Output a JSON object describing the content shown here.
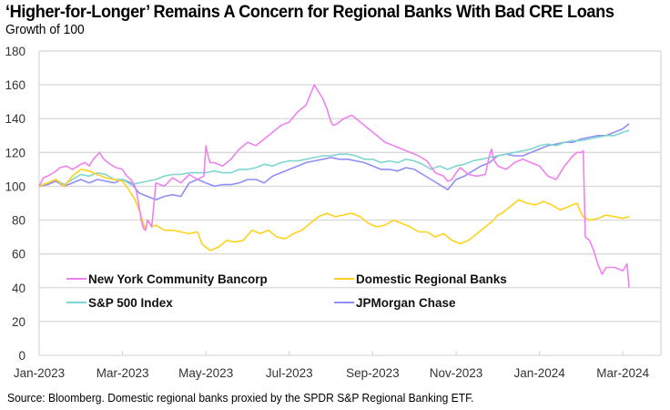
{
  "chart_data": {
    "type": "line",
    "title": "‘Higher-for-Longer’ Remains A Concern for Regional Banks With Bad CRE Loans",
    "subtitle": "Growth of 100",
    "xlabel": "",
    "ylabel": "",
    "source": "Source: Bloomberg. Domestic regional banks proxied by the SPDR S&P Regional Banking ETF.",
    "ylim": [
      0,
      180
    ],
    "yticks": [
      0,
      20,
      40,
      60,
      80,
      100,
      120,
      140,
      160,
      180
    ],
    "xlim_months": [
      0,
      14.9
    ],
    "xticks": [
      {
        "m": 0,
        "label": "Jan-2023"
      },
      {
        "m": 2,
        "label": "Mar-2023"
      },
      {
        "m": 4,
        "label": "May-2023"
      },
      {
        "m": 6,
        "label": "Jul-2023"
      },
      {
        "m": 8,
        "label": "Sep-2023"
      },
      {
        "m": 10,
        "label": "Nov-2023"
      },
      {
        "m": 12,
        "label": "Jan-2024"
      },
      {
        "m": 14,
        "label": "Mar-2024"
      }
    ],
    "x_unit": "months since Jan-2023",
    "grid": "horizontal",
    "legend_position": "lower-left, inside plot",
    "series": [
      {
        "name": "New York Community Bancorp",
        "color": "#ee82ee",
        "x": [
          0,
          0.1,
          0.2,
          0.35,
          0.5,
          0.65,
          0.8,
          1.0,
          1.1,
          1.2,
          1.3,
          1.45,
          1.55,
          1.7,
          1.85,
          2.0,
          2.1,
          2.2,
          2.25,
          2.3,
          2.35,
          2.45,
          2.5,
          2.55,
          2.6,
          2.7,
          2.8,
          3.0,
          3.2,
          3.4,
          3.6,
          3.8,
          3.95,
          4.0,
          4.05,
          4.1,
          4.2,
          4.4,
          4.6,
          4.8,
          5.0,
          5.2,
          5.4,
          5.6,
          5.8,
          6.0,
          6.2,
          6.4,
          6.6,
          6.8,
          6.9,
          7.0,
          7.05,
          7.15,
          7.3,
          7.5,
          7.7,
          7.9,
          8.1,
          8.3,
          8.5,
          8.7,
          8.9,
          9.1,
          9.3,
          9.5,
          9.7,
          9.8,
          9.9,
          10.0,
          10.1,
          10.3,
          10.5,
          10.7,
          10.8,
          10.85,
          10.9,
          11.0,
          11.2,
          11.4,
          11.6,
          11.8,
          12.0,
          12.2,
          12.4,
          12.6,
          12.8,
          12.9,
          13.0,
          13.05,
          13.1,
          13.2,
          13.3,
          13.4,
          13.5,
          13.6,
          13.8,
          14.0,
          14.1,
          14.15
        ],
        "values": [
          100,
          105,
          106,
          108,
          111,
          112,
          110,
          113,
          114,
          112,
          116,
          120,
          116,
          113,
          111,
          110,
          106,
          104,
          102,
          100,
          95,
          80,
          75,
          74,
          80,
          76,
          102,
          100,
          105,
          102,
          107,
          104,
          106,
          124,
          118,
          114,
          114,
          112,
          116,
          122,
          126,
          124,
          128,
          132,
          136,
          138,
          144,
          148,
          160,
          152,
          146,
          138,
          136,
          137,
          140,
          142,
          138,
          134,
          130,
          126,
          124,
          122,
          120,
          118,
          115,
          108,
          106,
          103,
          104,
          108,
          111,
          107,
          106,
          107,
          118,
          122,
          116,
          112,
          110,
          114,
          116,
          114,
          112,
          106,
          104,
          112,
          118,
          120,
          120,
          121,
          70,
          68,
          62,
          54,
          48,
          52,
          52,
          50,
          54,
          40
        ],
        "smooth": false
      },
      {
        "name": "Domestic Regional Banks",
        "color": "#ffd21f",
        "x": [
          0,
          0.2,
          0.4,
          0.6,
          0.8,
          1.0,
          1.2,
          1.4,
          1.6,
          1.8,
          2.0,
          2.15,
          2.3,
          2.4,
          2.5,
          2.55,
          2.6,
          2.7,
          2.8,
          3.0,
          3.2,
          3.4,
          3.6,
          3.8,
          3.9,
          4.0,
          4.1,
          4.3,
          4.5,
          4.7,
          4.9,
          5.1,
          5.3,
          5.5,
          5.7,
          5.9,
          6.1,
          6.3,
          6.5,
          6.7,
          6.9,
          7.1,
          7.3,
          7.5,
          7.7,
          7.9,
          8.1,
          8.3,
          8.5,
          8.7,
          8.9,
          9.1,
          9.3,
          9.5,
          9.7,
          9.9,
          10.1,
          10.3,
          10.5,
          10.7,
          10.9,
          11.0,
          11.1,
          11.3,
          11.5,
          11.7,
          11.9,
          12.1,
          12.3,
          12.5,
          12.7,
          12.9,
          13.0,
          13.05,
          13.2,
          13.4,
          13.6,
          13.8,
          14.0,
          14.15
        ],
        "values": [
          100,
          102,
          104,
          100,
          106,
          110,
          109,
          107,
          105,
          104,
          103,
          98,
          92,
          86,
          78,
          74,
          80,
          76,
          77,
          74,
          74,
          73,
          72,
          73,
          66,
          64,
          62,
          64,
          68,
          67,
          68,
          74,
          72,
          74,
          70,
          69,
          72,
          74,
          78,
          82,
          84,
          82,
          83,
          84,
          82,
          78,
          76,
          77,
          80,
          78,
          76,
          73,
          73,
          70,
          72,
          68,
          66,
          68,
          72,
          76,
          80,
          83,
          84,
          88,
          92,
          90,
          89,
          91,
          89,
          86,
          88,
          90,
          84,
          82,
          80,
          81,
          83,
          82,
          81,
          82
        ],
        "smooth": false
      },
      {
        "name": "S&P 500 Index",
        "color": "#7fd6cf",
        "x": [
          0,
          0.2,
          0.4,
          0.6,
          0.8,
          1.0,
          1.2,
          1.4,
          1.6,
          1.8,
          2.0,
          2.2,
          2.4,
          2.6,
          2.8,
          3.0,
          3.2,
          3.4,
          3.6,
          3.8,
          4.0,
          4.2,
          4.4,
          4.6,
          4.8,
          5.0,
          5.2,
          5.4,
          5.6,
          5.8,
          6.0,
          6.2,
          6.4,
          6.6,
          6.8,
          7.0,
          7.2,
          7.4,
          7.6,
          7.8,
          8.0,
          8.2,
          8.4,
          8.6,
          8.8,
          9.0,
          9.2,
          9.4,
          9.6,
          9.8,
          10.0,
          10.2,
          10.4,
          10.6,
          10.8,
          11.0,
          11.2,
          11.4,
          11.6,
          11.8,
          12.0,
          12.2,
          12.4,
          12.6,
          12.8,
          13.0,
          13.2,
          13.4,
          13.6,
          13.8,
          14.0,
          14.15
        ],
        "values": [
          100,
          102,
          104,
          101,
          104,
          107,
          106,
          108,
          107,
          104,
          104,
          101,
          102,
          103,
          104,
          106,
          107,
          107,
          108,
          108,
          108,
          109,
          108,
          108,
          110,
          110,
          111,
          113,
          112,
          114,
          115,
          115,
          116,
          117,
          118,
          118,
          119,
          119,
          118,
          116,
          116,
          114,
          115,
          114,
          116,
          115,
          113,
          110,
          112,
          110,
          112,
          113,
          115,
          116,
          117,
          118,
          119,
          120,
          121,
          122,
          124,
          125,
          124,
          126,
          127,
          127,
          128,
          129,
          130,
          130,
          132,
          133
        ],
        "smooth": false
      },
      {
        "name": "JPMorgan Chase",
        "color": "#8f8ff5",
        "x": [
          0,
          0.2,
          0.4,
          0.6,
          0.8,
          1.0,
          1.2,
          1.4,
          1.6,
          1.8,
          2.0,
          2.2,
          2.4,
          2.6,
          2.8,
          3.0,
          3.2,
          3.4,
          3.6,
          3.8,
          4.0,
          4.2,
          4.4,
          4.6,
          4.8,
          5.0,
          5.2,
          5.4,
          5.6,
          5.8,
          6.0,
          6.2,
          6.4,
          6.6,
          6.8,
          7.0,
          7.2,
          7.4,
          7.6,
          7.8,
          8.0,
          8.2,
          8.4,
          8.6,
          8.8,
          9.0,
          9.2,
          9.4,
          9.6,
          9.8,
          10.0,
          10.2,
          10.4,
          10.6,
          10.8,
          11.0,
          11.2,
          11.4,
          11.6,
          11.8,
          12.0,
          12.2,
          12.4,
          12.6,
          12.8,
          13.0,
          13.2,
          13.4,
          13.6,
          13.8,
          14.0,
          14.15
        ],
        "values": [
          100,
          101,
          103,
          100,
          102,
          104,
          102,
          104,
          103,
          102,
          104,
          102,
          96,
          94,
          92,
          94,
          95,
          94,
          102,
          104,
          102,
          100,
          101,
          101,
          102,
          104,
          104,
          102,
          106,
          108,
          110,
          112,
          114,
          115,
          116,
          117,
          116,
          116,
          115,
          114,
          112,
          110,
          110,
          109,
          111,
          110,
          107,
          104,
          101,
          98,
          104,
          106,
          109,
          112,
          114,
          118,
          119,
          118,
          118,
          120,
          122,
          124,
          125,
          126,
          126,
          128,
          129,
          130,
          130,
          132,
          134,
          137
        ],
        "smooth": false
      }
    ]
  }
}
